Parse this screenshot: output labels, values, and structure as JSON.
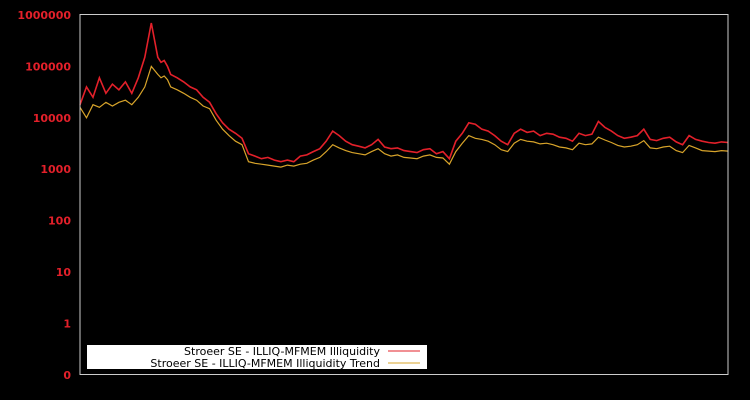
{
  "chart_data": {
    "type": "line",
    "title": "",
    "xlabel": "",
    "ylabel": "",
    "yscale": "log",
    "ylim": [
      0.1,
      1000000
    ],
    "y_tick_labels": [
      "1000000",
      "100000",
      "10000",
      "1000",
      "100",
      "10",
      "1",
      "0"
    ],
    "grid": false,
    "legend_position": "lower-left",
    "colors": {
      "background": "#000000",
      "axis": "#cccccc",
      "tick_label": "#e3202a",
      "illiquidity": "#e3202a",
      "trend": "#d8a42a"
    },
    "series": [
      {
        "name": "Stroeer SE - ILLIQ-MFMEM Illiquidity",
        "color": "#e3202a",
        "x_frac": [
          0,
          0.01,
          0.02,
          0.03,
          0.04,
          0.05,
          0.06,
          0.07,
          0.08,
          0.09,
          0.1,
          0.11,
          0.12,
          0.125,
          0.13,
          0.135,
          0.14,
          0.15,
          0.16,
          0.17,
          0.18,
          0.19,
          0.2,
          0.21,
          0.22,
          0.23,
          0.24,
          0.25,
          0.26,
          0.27,
          0.28,
          0.29,
          0.3,
          0.31,
          0.32,
          0.33,
          0.34,
          0.35,
          0.36,
          0.37,
          0.38,
          0.39,
          0.4,
          0.41,
          0.42,
          0.43,
          0.44,
          0.45,
          0.46,
          0.47,
          0.48,
          0.49,
          0.5,
          0.51,
          0.52,
          0.53,
          0.54,
          0.55,
          0.56,
          0.57,
          0.58,
          0.59,
          0.6,
          0.61,
          0.62,
          0.63,
          0.64,
          0.65,
          0.66,
          0.67,
          0.68,
          0.69,
          0.7,
          0.71,
          0.72,
          0.73,
          0.74,
          0.75,
          0.76,
          0.77,
          0.78,
          0.79,
          0.8,
          0.81,
          0.82,
          0.83,
          0.84,
          0.85,
          0.86,
          0.87,
          0.88,
          0.89,
          0.9,
          0.91,
          0.92,
          0.93,
          0.94,
          0.95,
          0.96,
          0.97,
          0.98,
          0.99,
          1.0
        ],
        "values": [
          18000,
          40000,
          25000,
          60000,
          30000,
          45000,
          35000,
          50000,
          30000,
          60000,
          150000,
          700000,
          150000,
          120000,
          130000,
          100000,
          70000,
          60000,
          50000,
          40000,
          35000,
          25000,
          20000,
          12000,
          8000,
          6000,
          5000,
          4000,
          2000,
          1800,
          1600,
          1700,
          1500,
          1400,
          1500,
          1400,
          1800,
          1900,
          2200,
          2500,
          3500,
          5500,
          4500,
          3500,
          3000,
          2800,
          2600,
          3000,
          3800,
          2700,
          2500,
          2600,
          2300,
          2200,
          2100,
          2400,
          2500,
          2000,
          2200,
          1600,
          3500,
          5000,
          8000,
          7500,
          6000,
          5500,
          4500,
          3500,
          3000,
          5000,
          6000,
          5200,
          5500,
          4500,
          5000,
          4800,
          4200,
          4000,
          3500,
          5000,
          4500,
          4800,
          8500,
          6500,
          5500,
          4500,
          4000,
          4200,
          4500,
          6000,
          3800,
          3600,
          4000,
          4200,
          3400,
          3000,
          4500,
          3800,
          3500,
          3300,
          3200,
          3400,
          3300
        ]
      },
      {
        "name": "Stroeer SE - ILLIQ-MFMEM Illiquidity Trend",
        "color": "#d8a42a",
        "x_frac": [
          0,
          0.01,
          0.02,
          0.03,
          0.04,
          0.05,
          0.06,
          0.07,
          0.08,
          0.09,
          0.1,
          0.11,
          0.12,
          0.125,
          0.13,
          0.135,
          0.14,
          0.15,
          0.16,
          0.17,
          0.18,
          0.19,
          0.2,
          0.21,
          0.22,
          0.23,
          0.24,
          0.25,
          0.26,
          0.27,
          0.28,
          0.29,
          0.3,
          0.31,
          0.32,
          0.33,
          0.34,
          0.35,
          0.36,
          0.37,
          0.38,
          0.39,
          0.4,
          0.41,
          0.42,
          0.43,
          0.44,
          0.45,
          0.46,
          0.47,
          0.48,
          0.49,
          0.5,
          0.51,
          0.52,
          0.53,
          0.54,
          0.55,
          0.56,
          0.57,
          0.58,
          0.59,
          0.6,
          0.61,
          0.62,
          0.63,
          0.64,
          0.65,
          0.66,
          0.67,
          0.68,
          0.69,
          0.7,
          0.71,
          0.72,
          0.73,
          0.74,
          0.75,
          0.76,
          0.77,
          0.78,
          0.79,
          0.8,
          0.81,
          0.82,
          0.83,
          0.84,
          0.85,
          0.86,
          0.87,
          0.88,
          0.89,
          0.9,
          0.91,
          0.92,
          0.93,
          0.94,
          0.95,
          0.96,
          0.97,
          0.98,
          0.99,
          1.0
        ],
        "values": [
          16000,
          10000,
          18000,
          16000,
          20000,
          17000,
          20000,
          22000,
          18000,
          25000,
          40000,
          100000,
          70000,
          60000,
          65000,
          55000,
          40000,
          35000,
          30000,
          25000,
          22000,
          17000,
          15000,
          9000,
          6000,
          4500,
          3500,
          3000,
          1400,
          1300,
          1250,
          1200,
          1150,
          1100,
          1200,
          1150,
          1250,
          1300,
          1500,
          1700,
          2200,
          3000,
          2600,
          2300,
          2100,
          2000,
          1900,
          2200,
          2500,
          2000,
          1800,
          1900,
          1700,
          1650,
          1600,
          1800,
          1900,
          1700,
          1650,
          1250,
          2200,
          3200,
          4500,
          4000,
          3800,
          3500,
          3000,
          2400,
          2200,
          3200,
          3800,
          3500,
          3400,
          3100,
          3200,
          3000,
          2700,
          2600,
          2400,
          3200,
          3000,
          3100,
          4200,
          3700,
          3300,
          2900,
          2700,
          2800,
          3000,
          3600,
          2600,
          2500,
          2700,
          2800,
          2300,
          2100,
          2900,
          2600,
          2300,
          2250,
          2200,
          2300,
          2250
        ]
      }
    ]
  },
  "legend": {
    "items": [
      {
        "label": "Stroeer SE - ILLIQ-MFMEM Illiquidity",
        "color": "#e3202a"
      },
      {
        "label": "Stroeer SE - ILLIQ-MFMEM Illiquidity Trend",
        "color": "#d8a42a"
      }
    ]
  }
}
